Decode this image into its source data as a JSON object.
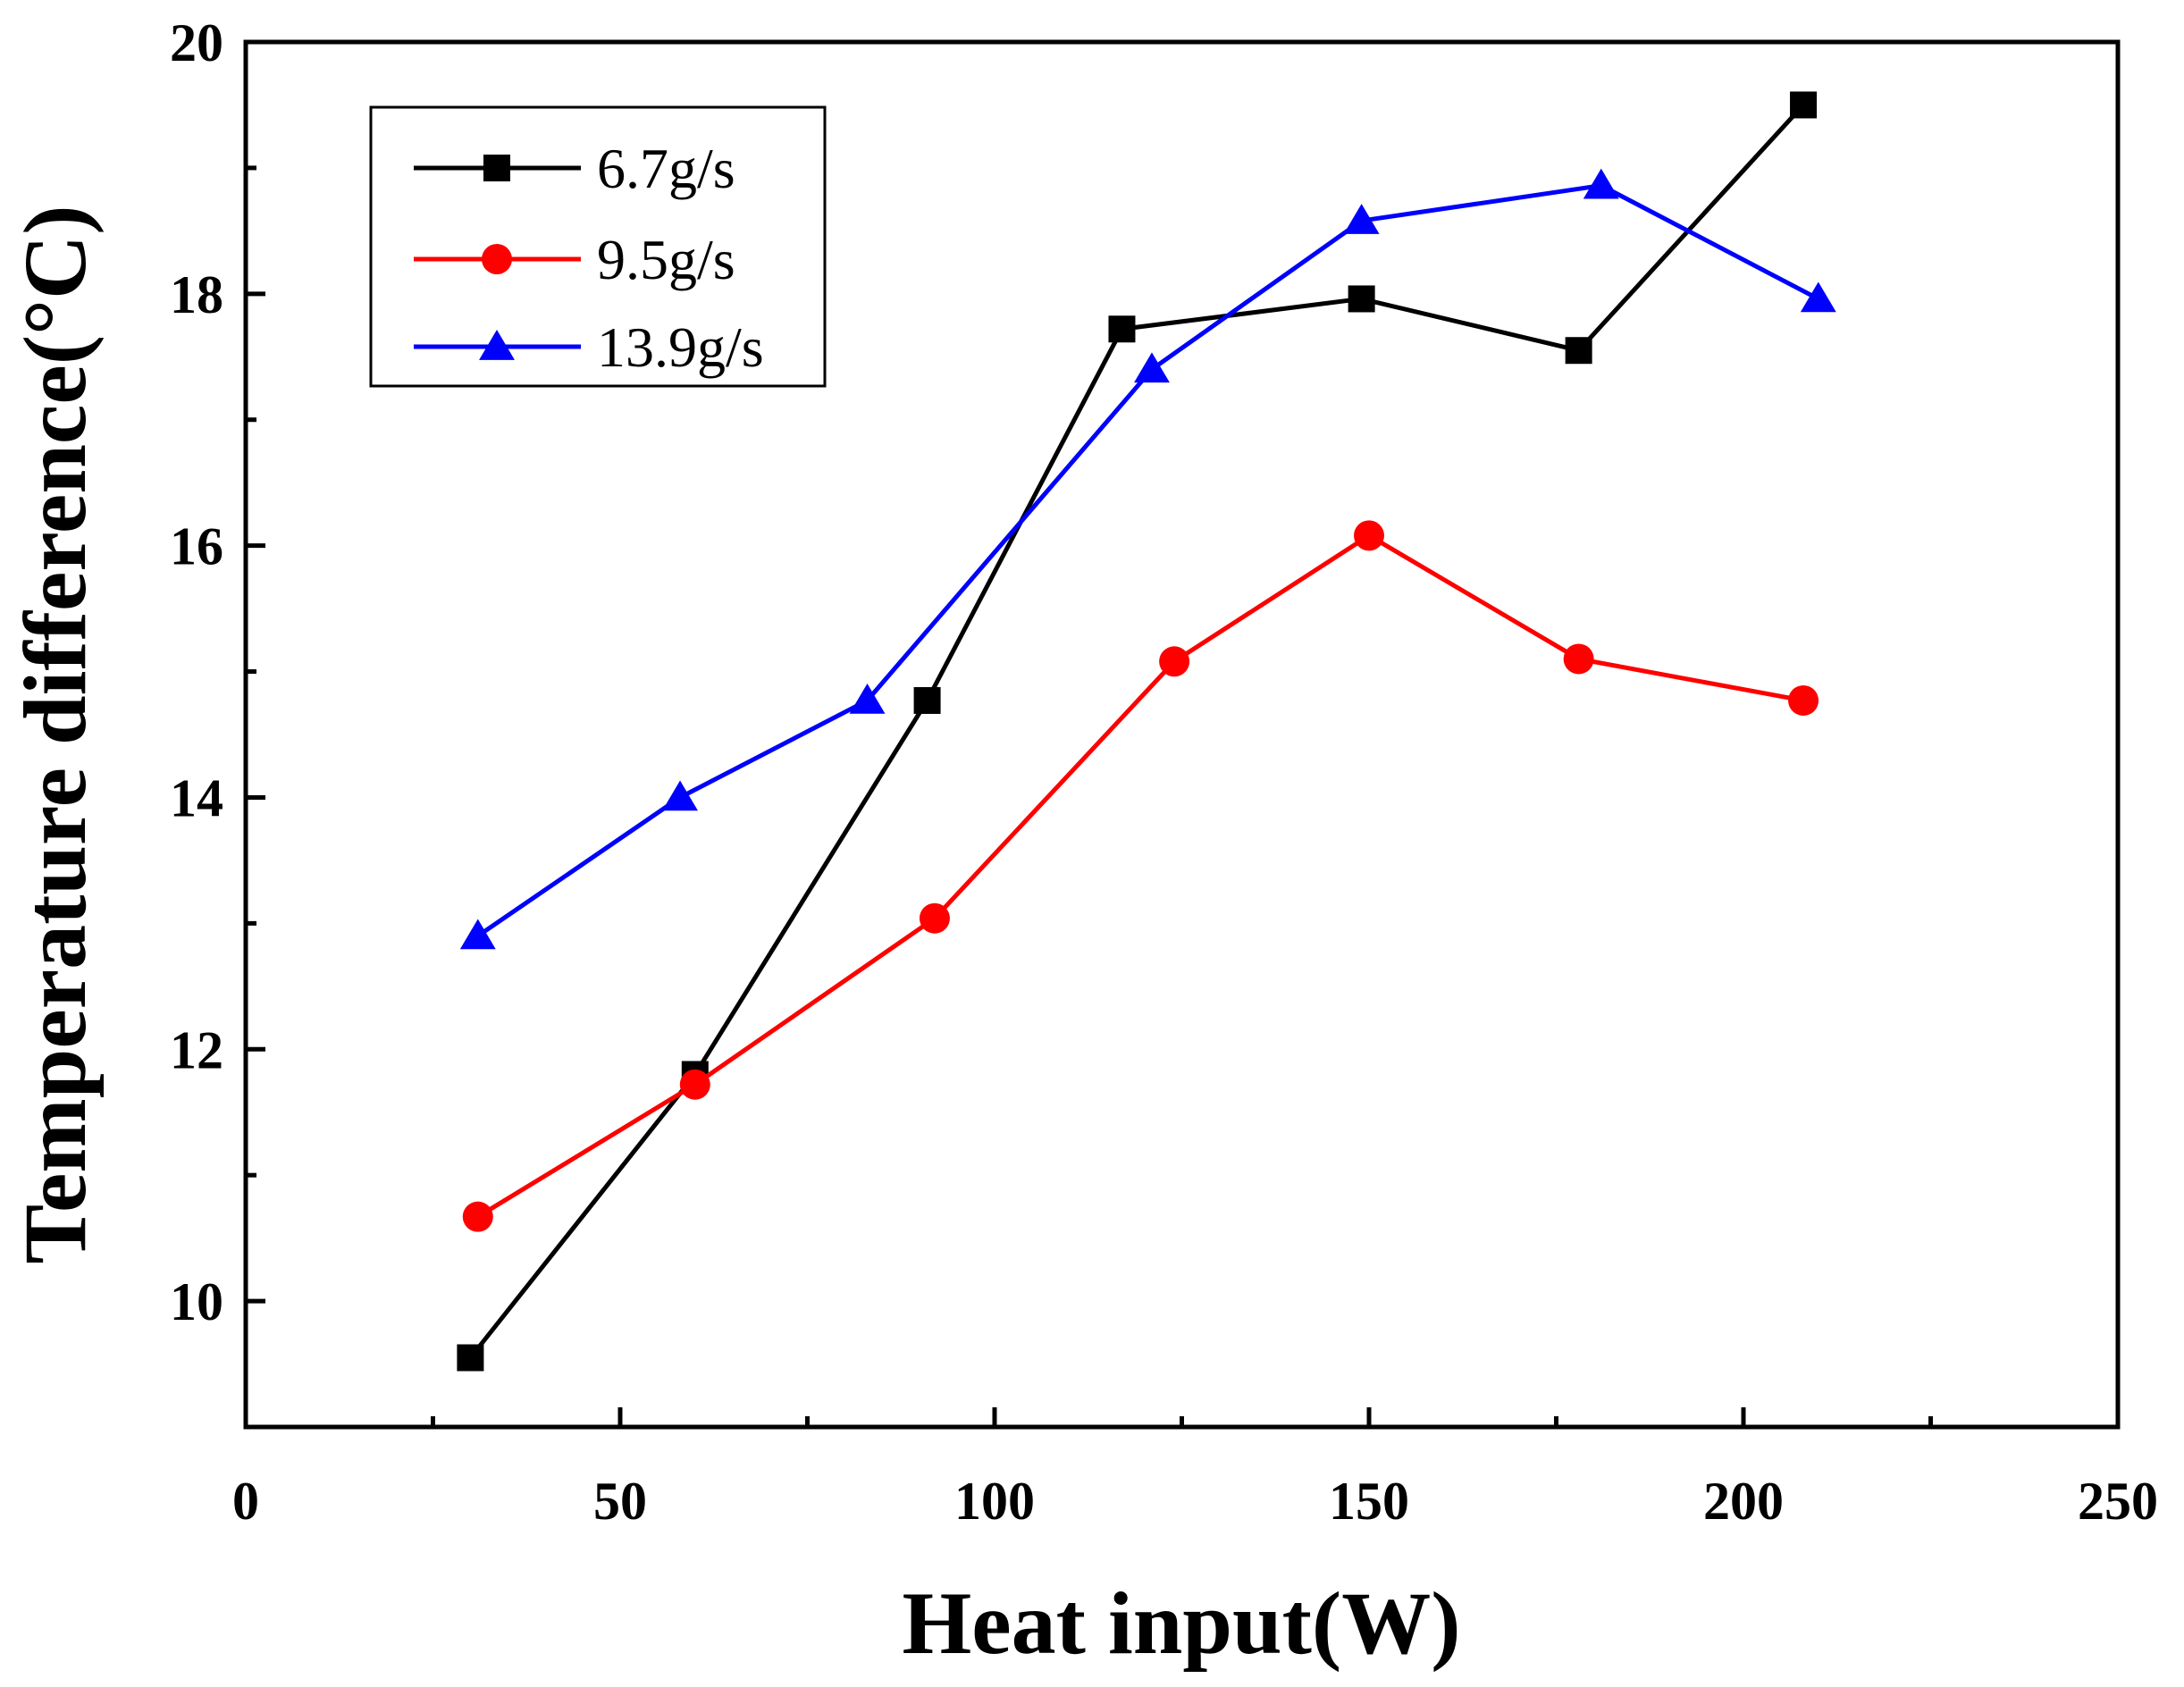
{
  "chart_data": {
    "type": "line",
    "xlabel": "Heat input(W)",
    "ylabel": "Temperature difference(°C)",
    "xlim": [
      0,
      250
    ],
    "ylim": [
      9,
      20
    ],
    "xticks": [
      0,
      50,
      100,
      150,
      200,
      250
    ],
    "xticks_minor": [
      25,
      75,
      125,
      175,
      225
    ],
    "yticks": [
      10,
      12,
      14,
      16,
      18,
      20
    ],
    "yticks_minor": [
      11,
      13,
      15,
      17,
      19
    ],
    "legend_position": "top-left",
    "grid": false,
    "series": [
      {
        "name": "6.7g/s",
        "color": "#000000",
        "marker": "square",
        "x": [
          30,
          60,
          91,
          117,
          149,
          178,
          208
        ],
        "y": [
          9.55,
          11.8,
          14.77,
          17.72,
          17.96,
          17.55,
          19.5
        ]
      },
      {
        "name": "9.5g/s",
        "color": "#ff0000",
        "marker": "circle",
        "x": [
          31,
          60,
          92,
          124,
          150,
          178,
          208
        ],
        "y": [
          10.67,
          11.72,
          13.04,
          15.08,
          16.08,
          15.1,
          14.77
        ]
      },
      {
        "name": "13.9g/s",
        "color": "#0000ff",
        "marker": "triangle",
        "x": [
          31,
          58,
          83,
          121,
          149,
          181,
          210
        ],
        "y": [
          12.9,
          14.0,
          14.77,
          17.4,
          18.58,
          18.86,
          17.96
        ]
      }
    ]
  }
}
